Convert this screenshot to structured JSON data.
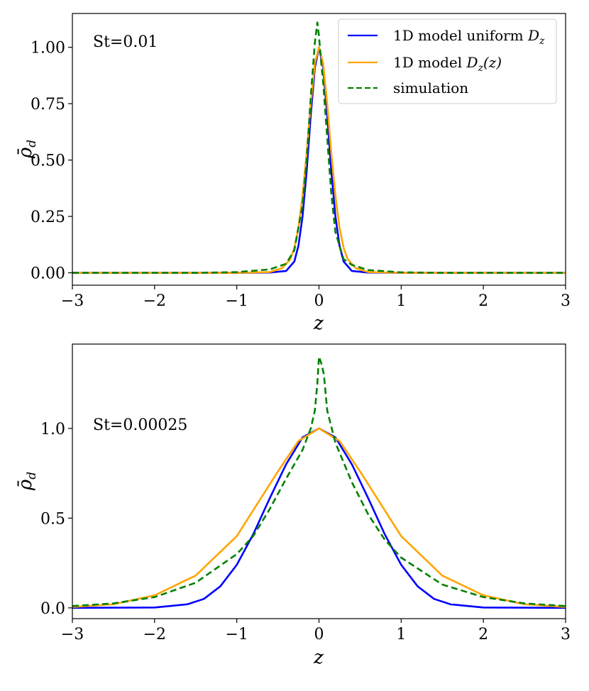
{
  "chart_data": [
    {
      "type": "line",
      "annotation": "St=0.01",
      "xlabel": "z",
      "ylabel": "ρ̄",
      "ylabel_sub": "d",
      "xlim": [
        -3,
        3
      ],
      "ylim": [
        -0.055,
        1.15
      ],
      "xticks": [
        -3,
        -2,
        -1,
        0,
        1,
        2,
        3
      ],
      "xtick_labels": [
        "−3",
        "−2",
        "−1",
        "0",
        "1",
        "2",
        "3"
      ],
      "yticks": [
        0,
        0.25,
        0.5,
        0.75,
        1.0
      ],
      "ytick_labels": [
        "0.00",
        "0.25",
        "0.50",
        "0.75",
        "1.00"
      ],
      "legend": {
        "position": "top-right",
        "entries": [
          {
            "label": "1D model uniform ",
            "math_label": "D",
            "math_sub": "z",
            "math_tail": ""
          },
          {
            "label": "1D model ",
            "math_label": "D",
            "math_sub": "z",
            "math_tail": "(z)"
          },
          {
            "label": "simulation",
            "math_label": "",
            "math_sub": "",
            "math_tail": ""
          }
        ]
      },
      "series": [
        {
          "name": "1D model uniform D_z",
          "color": "#0000ff",
          "dash": "solid",
          "x": [
            -3,
            -1.0,
            -0.6,
            -0.4,
            -0.3,
            -0.25,
            -0.2,
            -0.15,
            -0.1,
            -0.05,
            0,
            0.05,
            0.1,
            0.15,
            0.2,
            0.25,
            0.3,
            0.4,
            0.6,
            1.0,
            3
          ],
          "y": [
            0,
            0,
            0.001,
            0.008,
            0.05,
            0.12,
            0.25,
            0.45,
            0.7,
            0.91,
            1.0,
            0.91,
            0.7,
            0.45,
            0.25,
            0.12,
            0.05,
            0.008,
            0.001,
            0,
            0
          ]
        },
        {
          "name": "1D model D_z(z)",
          "color": "#ffa500",
          "dash": "solid",
          "x": [
            -3,
            -1.0,
            -0.6,
            -0.45,
            -0.35,
            -0.3,
            -0.25,
            -0.2,
            -0.15,
            -0.1,
            -0.05,
            0,
            0.05,
            0.1,
            0.15,
            0.2,
            0.25,
            0.3,
            0.35,
            0.45,
            0.6,
            1.0,
            3
          ],
          "y": [
            0,
            0,
            0.003,
            0.02,
            0.06,
            0.11,
            0.2,
            0.34,
            0.53,
            0.75,
            0.93,
            1.0,
            0.93,
            0.75,
            0.53,
            0.34,
            0.2,
            0.11,
            0.06,
            0.02,
            0.003,
            0,
            0
          ]
        },
        {
          "name": "simulation",
          "color": "#008000",
          "dash": "dashed",
          "x": [
            -3,
            -1.5,
            -1.0,
            -0.6,
            -0.4,
            -0.3,
            -0.2,
            -0.15,
            -0.1,
            -0.05,
            -0.02,
            0,
            0.03,
            0.05,
            0.1,
            0.15,
            0.2,
            0.3,
            0.4,
            0.6,
            1.0,
            1.5,
            3
          ],
          "y": [
            0,
            0,
            0.003,
            0.015,
            0.04,
            0.1,
            0.3,
            0.5,
            0.78,
            1.02,
            1.11,
            1.05,
            0.92,
            0.85,
            0.6,
            0.35,
            0.18,
            0.06,
            0.035,
            0.012,
            0.002,
            0,
            0
          ]
        }
      ]
    },
    {
      "type": "line",
      "annotation": "St=0.00025",
      "xlabel": "z",
      "ylabel": "ρ̄",
      "ylabel_sub": "d",
      "xlim": [
        -3,
        3
      ],
      "ylim": [
        -0.06,
        1.47
      ],
      "xticks": [
        -3,
        -2,
        -1,
        0,
        1,
        2,
        3
      ],
      "xtick_labels": [
        "−3",
        "−2",
        "−1",
        "0",
        "1",
        "2",
        "3"
      ],
      "yticks": [
        0,
        0.5,
        1.0
      ],
      "ytick_labels": [
        "0.0",
        "0.5",
        "1.0"
      ],
      "series": [
        {
          "name": "1D model uniform D_z",
          "color": "#0000ff",
          "dash": "solid",
          "x": [
            -3,
            -2.0,
            -1.6,
            -1.4,
            -1.2,
            -1.0,
            -0.8,
            -0.6,
            -0.4,
            -0.2,
            0,
            0.2,
            0.4,
            0.6,
            0.8,
            1.0,
            1.2,
            1.4,
            1.6,
            2.0,
            3
          ],
          "y": [
            0,
            0.002,
            0.02,
            0.05,
            0.12,
            0.24,
            0.41,
            0.61,
            0.8,
            0.95,
            1.0,
            0.95,
            0.8,
            0.61,
            0.41,
            0.24,
            0.12,
            0.05,
            0.02,
            0.002,
            0
          ]
        },
        {
          "name": "1D model D_z(z)",
          "color": "#ffa500",
          "dash": "solid",
          "x": [
            -3,
            -2.5,
            -2.0,
            -1.5,
            -1.0,
            -0.5,
            -0.25,
            0,
            0.25,
            0.5,
            1.0,
            1.5,
            2.0,
            2.5,
            3
          ],
          "y": [
            0.005,
            0.02,
            0.07,
            0.18,
            0.4,
            0.76,
            0.93,
            1.0,
            0.93,
            0.76,
            0.4,
            0.18,
            0.07,
            0.02,
            0.005
          ]
        },
        {
          "name": "simulation",
          "color": "#008000",
          "dash": "dashed",
          "x": [
            -3,
            -2.5,
            -2.0,
            -1.5,
            -1.0,
            -0.8,
            -0.6,
            -0.4,
            -0.2,
            -0.1,
            -0.05,
            -0.02,
            0,
            0.03,
            0.06,
            0.1,
            0.2,
            0.4,
            0.6,
            0.8,
            1.0,
            1.5,
            2.0,
            2.5,
            3
          ],
          "y": [
            0.01,
            0.025,
            0.06,
            0.14,
            0.3,
            0.4,
            0.55,
            0.72,
            0.88,
            1.0,
            1.1,
            1.25,
            1.4,
            1.36,
            1.3,
            1.1,
            0.92,
            0.7,
            0.52,
            0.38,
            0.28,
            0.13,
            0.06,
            0.025,
            0.01
          ]
        }
      ]
    }
  ]
}
